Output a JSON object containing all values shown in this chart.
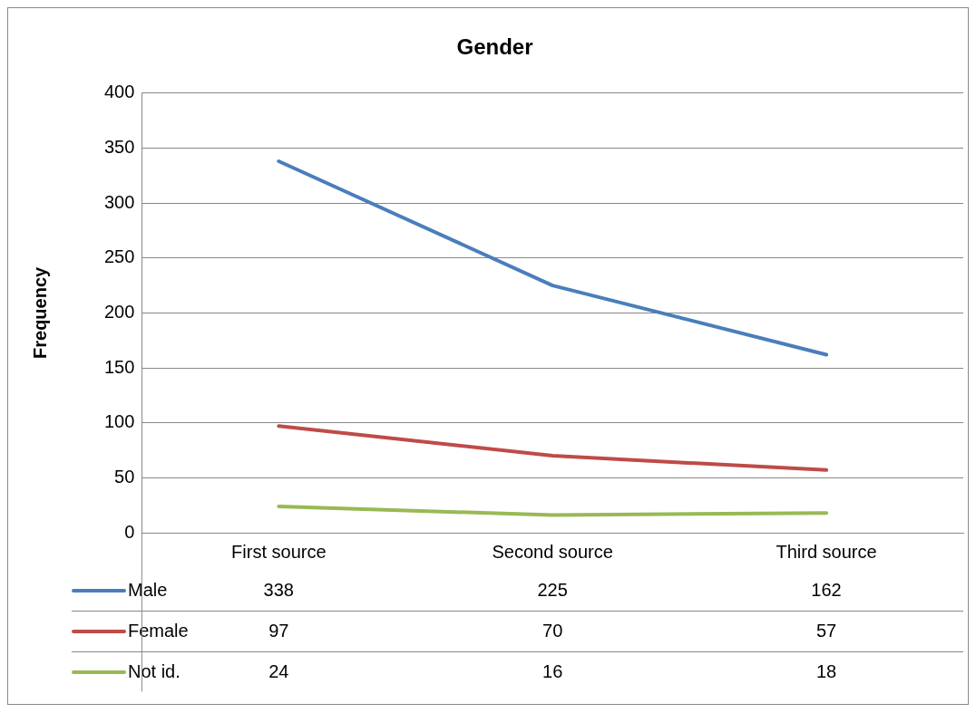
{
  "chart_data": {
    "type": "line",
    "title": "Gender",
    "ylabel": "Frequency",
    "categories": [
      "First source",
      "Second source",
      "Third source"
    ],
    "series": [
      {
        "name": "Male",
        "color": "#4a7ebb",
        "values": [
          338,
          225,
          162
        ]
      },
      {
        "name": "Female",
        "color": "#be4b48",
        "values": [
          97,
          70,
          57
        ]
      },
      {
        "name": "Not id.",
        "color": "#98b954",
        "values": [
          24,
          16,
          18
        ]
      }
    ],
    "ylim": [
      0,
      400
    ],
    "yticks": [
      0,
      50,
      100,
      150,
      200,
      250,
      300,
      350,
      400
    ],
    "grid": "y",
    "legend": "bottom",
    "data_labels": true,
    "marker": "none",
    "line_style": "solid"
  }
}
